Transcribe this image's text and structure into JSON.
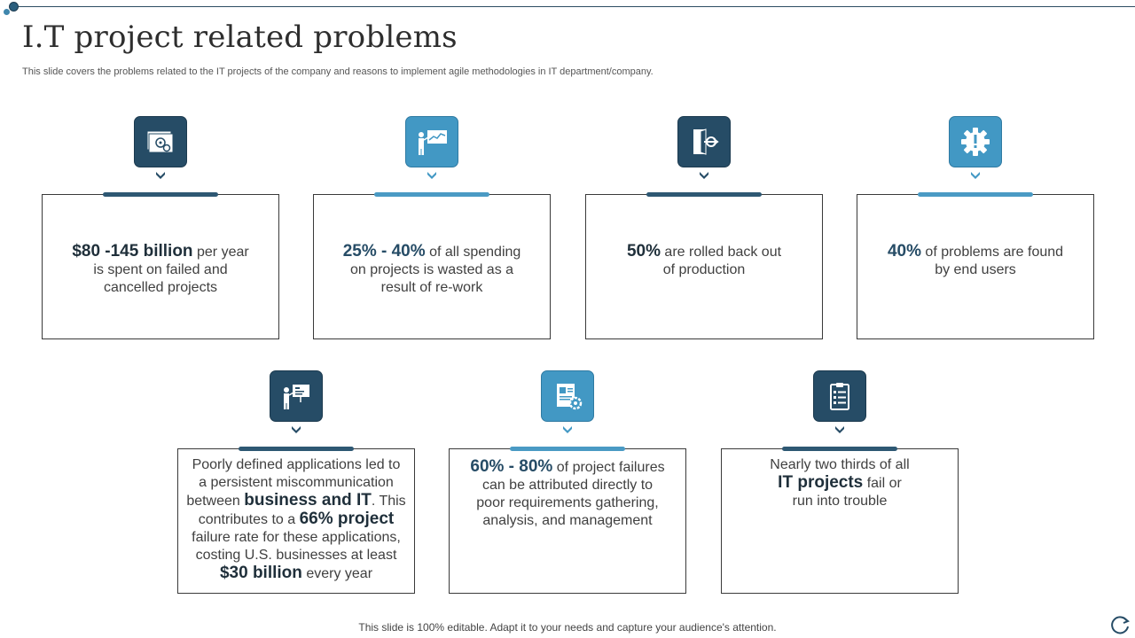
{
  "header": {
    "title": "I.T project related problems",
    "subtitle": "This slide covers the problems related to the IT projects of the company and reasons to implement agile methodologies in IT department/company."
  },
  "cards": [
    {
      "icon": "money-gears-icon",
      "highlight": "$80 -145 billion",
      "line1_rest": " per year",
      "line2": "is spent on failed and",
      "line3": "cancelled projects"
    },
    {
      "icon": "presentation-chart-icon",
      "highlight": "25% - 40%",
      "line1_rest": " of all spending",
      "line2": "on projects is wasted as a",
      "line3": "result of re-work"
    },
    {
      "icon": "exit-door-icon",
      "highlight": "50%",
      "line1_rest": " are rolled back out",
      "line2": "of production"
    },
    {
      "icon": "gear-alert-icon",
      "highlight": "40%",
      "line1_rest": " of problems are found",
      "line2": "by end users"
    },
    {
      "icon": "presenter-board-icon",
      "line1": "Poorly defined applications led to",
      "line2": "a persistent miscommunication",
      "line3_pre": "between ",
      "line3_hl": "business and IT",
      "line3_post": ". This",
      "line4_pre": "contributes to a ",
      "line4_hl": "66% project",
      "line5": "failure rate for these applications,",
      "line6": "costing U.S. businesses at least",
      "line7_hl": "$30 billion",
      "line7_post": " every year"
    },
    {
      "icon": "document-gear-icon",
      "highlight": "60% - 80%",
      "line1_rest": " of project failures",
      "line2": "can be attributed directly to",
      "line3": "poor requirements gathering,",
      "line4": "analysis, and management"
    },
    {
      "icon": "clipboard-checklist-icon",
      "line1": "Nearly two thirds of all",
      "line2_hl": "IT projects",
      "line2_post": " fail or",
      "line3": "run into trouble"
    }
  ],
  "footer": {
    "text": "This slide is 100% editable. Adapt it to your needs and capture your audience's attention."
  },
  "colors": {
    "dark": "#264c66",
    "light": "#4298c4"
  }
}
